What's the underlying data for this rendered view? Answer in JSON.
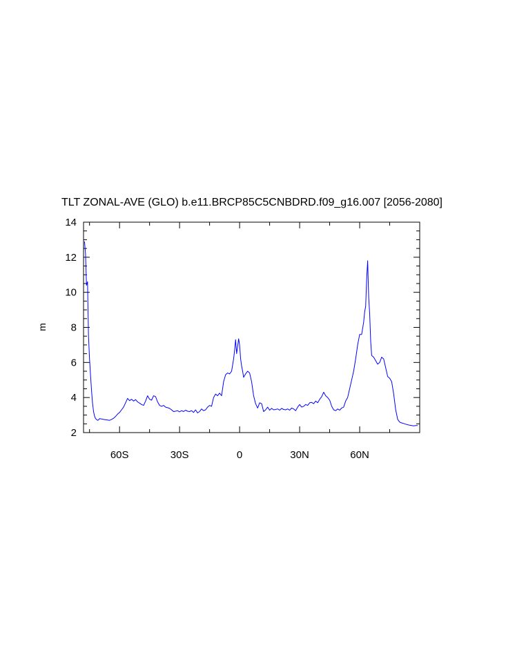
{
  "chart_data": {
    "type": "line",
    "title": "TLT ZONAL-AVE (GLO) b.e11.BRCP85C5CNBDRD.f09_g16.007 [2056-2080]",
    "xlabel": "",
    "ylabel": "m",
    "xlim": [
      -78,
      90
    ],
    "ylim": [
      2,
      14
    ],
    "x_ticks": [
      -60,
      -30,
      0,
      30,
      60
    ],
    "x_tick_labels": [
      "60S",
      "30S",
      "0",
      "30N",
      "60N"
    ],
    "y_ticks": [
      2,
      4,
      6,
      8,
      10,
      12,
      14
    ],
    "y_tick_labels": [
      "2",
      "4",
      "6",
      "8",
      "10",
      "12",
      "14"
    ],
    "grid": false,
    "series": [
      {
        "color": "#0000ff",
        "x": [
          -77.5,
          -77.0,
          -76.5,
          -76.0,
          -75.5,
          -75.0,
          -74.5,
          -74.0,
          -73.5,
          -73.0,
          -72.5,
          -72.0,
          -71.5,
          -71.0,
          -70.5,
          -70.0,
          -69.0,
          -68.0,
          -67.0,
          -66.0,
          -65.0,
          -64.0,
          -63.0,
          -62.0,
          -61.0,
          -60.0,
          -59.0,
          -58.0,
          -57.0,
          -56.0,
          -55.0,
          -54.0,
          -53.0,
          -52.0,
          -51.0,
          -50.0,
          -49.0,
          -48.0,
          -47.0,
          -46.0,
          -45.0,
          -44.0,
          -43.0,
          -42.0,
          -41.0,
          -40.0,
          -39.0,
          -38.0,
          -37.0,
          -36.0,
          -35.0,
          -34.0,
          -33.0,
          -32.0,
          -31.0,
          -30.0,
          -29.0,
          -28.0,
          -27.0,
          -26.0,
          -25.0,
          -24.0,
          -23.0,
          -22.0,
          -21.0,
          -20.0,
          -19.0,
          -18.0,
          -17.0,
          -16.0,
          -15.0,
          -14.0,
          -13.0,
          -12.0,
          -11.0,
          -10.0,
          -9.0,
          -8.0,
          -7.0,
          -6.0,
          -5.0,
          -4.0,
          -3.0,
          -2.5,
          -2.0,
          -1.5,
          -1.0,
          -0.5,
          0.0,
          0.5,
          1.0,
          1.5,
          2.0,
          3.0,
          4.0,
          5.0,
          6.0,
          7.0,
          8.0,
          9.0,
          10.0,
          11.0,
          12.0,
          13.0,
          14.0,
          15.0,
          16.0,
          17.0,
          18.0,
          19.0,
          20.0,
          21.0,
          22.0,
          23.0,
          24.0,
          25.0,
          26.0,
          27.0,
          28.0,
          29.0,
          30.0,
          31.0,
          32.0,
          33.0,
          34.0,
          35.0,
          36.0,
          37.0,
          38.0,
          39.0,
          40.0,
          41.0,
          42.0,
          43.0,
          44.0,
          45.0,
          46.0,
          47.0,
          48.0,
          49.0,
          50.0,
          51.0,
          52.0,
          53.0,
          54.0,
          55.0,
          56.0,
          57.0,
          58.0,
          59.0,
          60.0,
          61.0,
          62.0,
          62.5,
          63.0,
          63.5,
          64.0,
          64.5,
          65.0,
          65.5,
          66.0,
          67.0,
          68.0,
          69.0,
          70.0,
          71.0,
          72.0,
          73.0,
          74.0,
          75.0,
          76.0,
          77.0,
          78.0,
          79.0,
          80.0,
          81.0,
          82.0,
          83.0,
          84.0,
          85.0,
          86.0,
          87.0,
          88.0,
          89.0
        ],
        "y": [
          12.9,
          12.2,
          10.4,
          10.6,
          7.5,
          6.2,
          5.3,
          4.4,
          3.7,
          3.2,
          2.95,
          2.8,
          2.75,
          2.7,
          2.72,
          2.8,
          2.78,
          2.75,
          2.73,
          2.72,
          2.7,
          2.75,
          2.82,
          2.92,
          3.05,
          3.15,
          3.3,
          3.45,
          3.7,
          3.95,
          3.82,
          3.9,
          3.8,
          3.88,
          3.75,
          3.68,
          3.6,
          3.55,
          3.8,
          4.1,
          3.9,
          3.85,
          4.1,
          4.05,
          3.75,
          3.55,
          3.5,
          3.55,
          3.45,
          3.42,
          3.38,
          3.3,
          3.2,
          3.22,
          3.25,
          3.18,
          3.25,
          3.2,
          3.28,
          3.22,
          3.2,
          3.25,
          3.15,
          3.3,
          3.12,
          3.2,
          3.35,
          3.25,
          3.3,
          3.45,
          3.55,
          3.5,
          4.0,
          4.2,
          4.1,
          4.25,
          4.1,
          4.9,
          5.3,
          5.4,
          5.35,
          5.5,
          6.2,
          6.7,
          7.3,
          6.5,
          6.9,
          7.35,
          7.0,
          6.2,
          5.8,
          5.5,
          5.15,
          5.35,
          5.5,
          5.4,
          4.9,
          4.1,
          3.65,
          3.4,
          3.7,
          3.65,
          3.2,
          3.3,
          3.45,
          3.28,
          3.38,
          3.3,
          3.32,
          3.35,
          3.28,
          3.38,
          3.32,
          3.3,
          3.35,
          3.28,
          3.4,
          3.35,
          3.25,
          3.45,
          3.6,
          3.45,
          3.5,
          3.6,
          3.55,
          3.7,
          3.72,
          3.65,
          3.8,
          3.7,
          3.9,
          4.05,
          4.3,
          4.1,
          4.0,
          3.85,
          3.5,
          3.3,
          3.25,
          3.35,
          3.28,
          3.4,
          3.45,
          3.8,
          4.0,
          4.5,
          5.0,
          5.5,
          6.2,
          7.0,
          7.6,
          7.6,
          8.3,
          8.9,
          9.2,
          10.8,
          11.8,
          9.7,
          8.8,
          7.2,
          6.4,
          6.3,
          6.1,
          5.9,
          6.0,
          6.3,
          6.2,
          5.7,
          5.2,
          5.1,
          4.9,
          4.2,
          3.3,
          2.75,
          2.6,
          2.55,
          2.52,
          2.48,
          2.45,
          2.42,
          2.4,
          2.38,
          2.4,
          2.4
        ]
      }
    ]
  }
}
